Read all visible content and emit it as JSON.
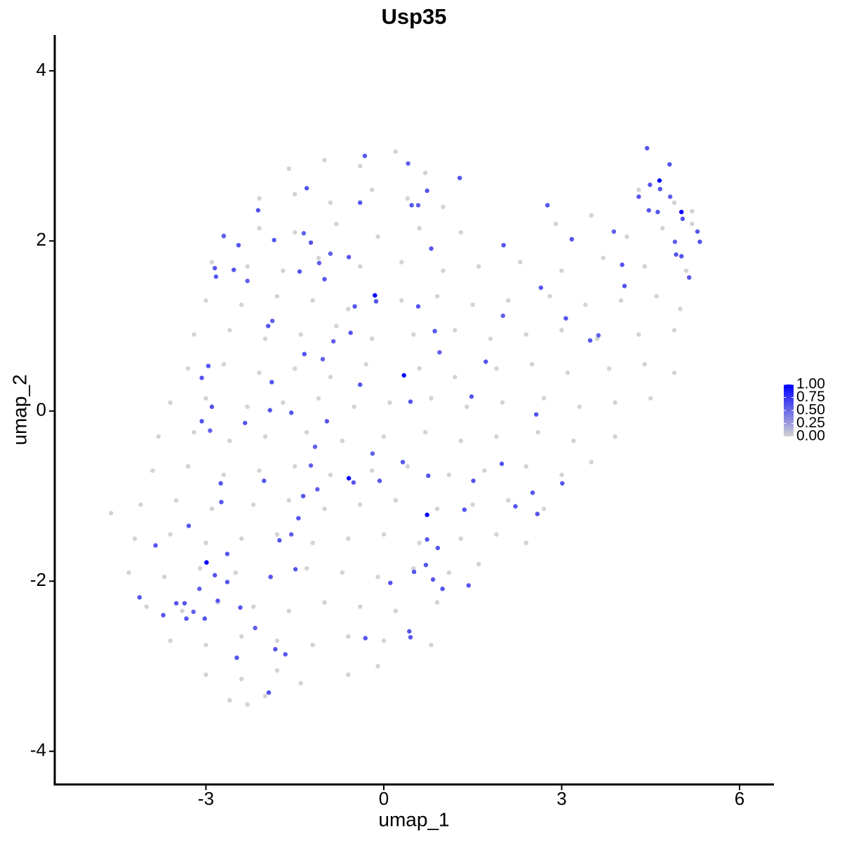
{
  "chart_data": {
    "type": "scatter",
    "title": "Usp35",
    "x_label": "umap_1",
    "y_label": "umap_2",
    "x": [
      -1.6,
      -1.0,
      -0.4,
      0.2,
      0.7,
      -2.1,
      -1.5,
      -0.9,
      -0.2,
      0.4,
      1.0,
      4.3,
      4.9,
      5.2,
      -2.7,
      -2.1,
      -1.5,
      -0.8,
      -0.1,
      0.6,
      1.3,
      2.9,
      3.5,
      4.1,
      4.7,
      5.2,
      -2.9,
      -2.3,
      -1.7,
      -1.1,
      -0.4,
      0.3,
      1.0,
      1.6,
      2.3,
      3.0,
      3.7,
      4.4,
      5.1,
      -3.0,
      -2.4,
      -1.8,
      -1.2,
      -0.6,
      0.3,
      0.9,
      1.5,
      2.1,
      2.8,
      3.4,
      4.0,
      4.6,
      5.0,
      -3.2,
      -2.6,
      -2.0,
      -1.4,
      -0.8,
      -0.2,
      0.5,
      1.2,
      1.8,
      2.4,
      3.0,
      3.6,
      4.3,
      4.9,
      -3.3,
      -2.7,
      -2.1,
      -1.5,
      -0.9,
      -0.3,
      0.6,
      1.2,
      1.9,
      2.5,
      3.1,
      3.8,
      4.4,
      4.9,
      -3.6,
      -3.0,
      -2.3,
      -1.7,
      -1.1,
      -0.5,
      0.1,
      0.8,
      1.4,
      2.0,
      2.7,
      3.3,
      3.9,
      4.5,
      -3.8,
      -3.2,
      -2.6,
      -2.0,
      -1.3,
      -0.7,
      0.0,
      0.7,
      1.3,
      1.9,
      2.6,
      3.2,
      3.9,
      -3.9,
      -3.3,
      -2.7,
      -2.1,
      -1.5,
      -0.9,
      -0.2,
      0.4,
      1.1,
      1.7,
      2.4,
      3.0,
      3.5,
      -4.6,
      -4.1,
      -3.5,
      -2.9,
      -2.2,
      -1.6,
      -1.0,
      -0.4,
      0.2,
      0.9,
      1.5,
      2.1,
      2.7,
      -4.2,
      -3.6,
      -3.0,
      -2.4,
      -1.8,
      -1.2,
      -0.6,
      0.0,
      0.6,
      1.3,
      1.9,
      2.4,
      -4.3,
      -3.7,
      -3.1,
      -2.5,
      -1.9,
      -1.3,
      -0.7,
      -0.1,
      0.5,
      1.1,
      1.6,
      -4.0,
      -3.4,
      -2.8,
      -2.2,
      -1.6,
      -1.0,
      -0.4,
      0.2,
      0.9,
      -3.6,
      -3.0,
      -2.4,
      -1.8,
      -1.2,
      -0.6,
      0.0,
      0.8,
      -3.0,
      -2.4,
      -1.8,
      -1.4,
      -0.6,
      -0.1,
      -2.6,
      -2.3,
      -2.0,
      -0.32,
      0.41,
      1.28,
      0.73,
      -1.3,
      -2.12,
      -0.4,
      0.47,
      0.58,
      -1.35,
      -1.85,
      -2.7,
      -2.45,
      -1.23,
      -0.9,
      -0.59,
      0.8,
      -2.85,
      -2.53,
      -1.42,
      -1.09,
      -1.0,
      -2.83,
      -2.3,
      -0.15,
      -0.13,
      -0.49,
      0.58,
      -1.95,
      -1.88,
      -0.56,
      -0.85,
      -1.34,
      -1.03,
      0.34,
      -2.96,
      -3.07,
      -1.89,
      -0.4,
      0.45,
      -2.9,
      -1.92,
      -1.56,
      -3.07,
      -2.93,
      -2.34,
      -0.96,
      -1.16,
      -0.19,
      0.32,
      -1.23,
      -0.59,
      -0.51,
      -0.07,
      -2.02,
      -2.75,
      -1.12,
      -1.36,
      -2.74,
      -1.44,
      0.73,
      -3.29,
      -1.76,
      -1.56,
      -3.85,
      -2.64,
      -2.99,
      -2.85,
      -2.64,
      -1.91,
      -1.49,
      0.11,
      0.71,
      -3.11,
      -4.12,
      -3.5,
      -3.36,
      -2.8,
      -2.42,
      -3.21,
      -3.72,
      -3.02,
      -3.33,
      -2.17,
      0.43,
      -0.31,
      0.45,
      -1.83,
      -1.66,
      -2.48,
      -1.94,
      4.44,
      4.82,
      4.65,
      4.49,
      4.66,
      4.3,
      4.83,
      2.76,
      4.47,
      4.62,
      5.02,
      5.04,
      5.29,
      3.88,
      3.17,
      2.02,
      4.91,
      5.33,
      4.02,
      4.93,
      5.02,
      5.15,
      4.06,
      2.65,
      2.01,
      3.07,
      3.62,
      3.48,
      0.86,
      0.94,
      1.72,
      1.48,
      2.57,
      1.99,
      1.51,
      3.01,
      0.75,
      2.51,
      2.22,
      1.36,
      2.59,
      0.73,
      0.91,
      0.51,
      0.83,
      0.99,
      1.43
    ],
    "y": [
      2.85,
      2.95,
      2.88,
      3.05,
      2.8,
      2.5,
      2.55,
      2.45,
      2.6,
      2.5,
      2.4,
      2.6,
      2.45,
      2.35,
      2.05,
      2.15,
      2.1,
      2.2,
      2.05,
      2.15,
      2.1,
      2.2,
      2.3,
      2.05,
      2.15,
      2.2,
      1.75,
      1.7,
      1.65,
      1.8,
      1.7,
      1.75,
      1.65,
      1.7,
      1.75,
      1.65,
      1.8,
      1.7,
      1.65,
      1.3,
      1.25,
      1.35,
      1.3,
      1.2,
      1.3,
      1.35,
      1.25,
      1.3,
      1.35,
      1.25,
      1.3,
      1.35,
      1.2,
      0.9,
      0.95,
      0.85,
      0.9,
      1.0,
      0.85,
      0.9,
      0.95,
      0.85,
      0.9,
      0.95,
      0.85,
      0.9,
      0.95,
      0.5,
      0.55,
      0.45,
      0.5,
      0.4,
      0.55,
      0.5,
      0.4,
      0.5,
      0.55,
      0.45,
      0.5,
      0.55,
      0.45,
      0.1,
      0.15,
      0.05,
      0.1,
      0.15,
      0.05,
      0.1,
      0.15,
      0.05,
      0.1,
      0.15,
      0.05,
      0.1,
      0.15,
      -0.3,
      -0.25,
      -0.35,
      -0.3,
      -0.25,
      -0.35,
      -0.3,
      -0.25,
      -0.35,
      -0.3,
      -0.25,
      -0.35,
      -0.3,
      -0.7,
      -0.65,
      -0.75,
      -0.7,
      -0.65,
      -0.75,
      -0.7,
      -0.65,
      -0.75,
      -0.7,
      -0.65,
      -0.75,
      -0.6,
      -1.2,
      -1.1,
      -1.05,
      -1.15,
      -1.1,
      -1.05,
      -1.15,
      -1.1,
      -1.05,
      -1.15,
      -1.1,
      -1.05,
      -1.15,
      -1.5,
      -1.45,
      -1.55,
      -1.5,
      -1.45,
      -1.55,
      -1.5,
      -1.45,
      -1.55,
      -1.5,
      -1.45,
      -1.55,
      -1.9,
      -1.95,
      -1.85,
      -1.9,
      -1.95,
      -1.85,
      -1.9,
      -1.95,
      -1.85,
      -1.9,
      -1.8,
      -2.3,
      -2.35,
      -2.25,
      -2.3,
      -2.35,
      -2.25,
      -2.3,
      -2.35,
      -2.25,
      -2.7,
      -2.75,
      -2.65,
      -2.7,
      -2.75,
      -2.65,
      -2.7,
      -2.75,
      -3.1,
      -3.15,
      -3.05,
      -3.2,
      -3.1,
      -3.0,
      -3.4,
      -3.45,
      -3.35,
      3.0,
      2.91,
      2.74,
      2.59,
      2.62,
      2.36,
      2.45,
      2.42,
      2.42,
      2.09,
      2.01,
      2.06,
      1.95,
      1.98,
      1.85,
      1.81,
      1.91,
      1.68,
      1.66,
      1.64,
      1.74,
      1.55,
      1.58,
      1.53,
      1.36,
      1.29,
      1.23,
      1.23,
      1.0,
      1.06,
      0.92,
      0.82,
      0.67,
      0.61,
      0.42,
      0.53,
      0.39,
      0.34,
      0.31,
      0.11,
      0.05,
      0.01,
      -0.02,
      -0.12,
      -0.23,
      -0.14,
      -0.12,
      -0.42,
      -0.5,
      -0.6,
      -0.64,
      -0.79,
      -0.84,
      -0.82,
      -0.82,
      -0.85,
      -0.92,
      -1.0,
      -1.07,
      -1.26,
      -1.22,
      -1.35,
      -1.52,
      -1.45,
      -1.58,
      -1.68,
      -1.78,
      -1.93,
      -2.01,
      -1.95,
      -1.86,
      -2.02,
      -1.81,
      -2.09,
      -2.19,
      -2.26,
      -2.26,
      -2.23,
      -2.31,
      -2.36,
      -2.4,
      -2.44,
      -2.44,
      -2.55,
      -2.59,
      -2.67,
      -2.66,
      -2.8,
      -2.86,
      -2.9,
      -3.31,
      3.09,
      2.9,
      2.71,
      2.66,
      2.61,
      2.52,
      2.52,
      2.42,
      2.36,
      2.34,
      2.34,
      2.26,
      2.11,
      2.11,
      2.02,
      1.95,
      1.99,
      1.99,
      1.72,
      1.84,
      1.82,
      1.57,
      1.47,
      1.45,
      1.12,
      1.09,
      0.89,
      0.83,
      0.94,
      0.69,
      0.58,
      0.17,
      -0.04,
      -0.62,
      -0.82,
      -0.85,
      -0.76,
      -0.96,
      -1.12,
      -1.16,
      -1.21,
      -1.51,
      -1.61,
      -1.89,
      -1.98,
      -2.09,
      -2.05
    ],
    "values": [
      0,
      0,
      0,
      0,
      0,
      0,
      0,
      0,
      0,
      0,
      0,
      0,
      0,
      0,
      0,
      0,
      0,
      0,
      0,
      0,
      0,
      0,
      0,
      0,
      0,
      0,
      0,
      0,
      0,
      0,
      0,
      0,
      0,
      0,
      0,
      0,
      0,
      0,
      0,
      0,
      0,
      0,
      0,
      0,
      0,
      0,
      0,
      0,
      0,
      0,
      0,
      0,
      0,
      0,
      0,
      0,
      0,
      0,
      0,
      0,
      0,
      0,
      0,
      0,
      0,
      0,
      0,
      0,
      0,
      0,
      0,
      0,
      0,
      0,
      0,
      0,
      0,
      0,
      0,
      0,
      0,
      0,
      0,
      0,
      0,
      0,
      0,
      0,
      0,
      0,
      0,
      0,
      0,
      0,
      0,
      0,
      0,
      0,
      0,
      0,
      0,
      0,
      0,
      0,
      0,
      0,
      0,
      0,
      0,
      0,
      0,
      0,
      0,
      0,
      0,
      0,
      0,
      0,
      0,
      0,
      0,
      0,
      0,
      0,
      0,
      0,
      0,
      0,
      0,
      0,
      0,
      0,
      0,
      0,
      0,
      0,
      0,
      0,
      0,
      0,
      0,
      0,
      0,
      0,
      0,
      0,
      0,
      0,
      0,
      0,
      0,
      0,
      0,
      0,
      0,
      0,
      0,
      0,
      0,
      0,
      0,
      0,
      0,
      0,
      0,
      0,
      0,
      0,
      0,
      0,
      0,
      0,
      0,
      0,
      0,
      0,
      0,
      0,
      0,
      0,
      0,
      0,
      0,
      0.6,
      0.55,
      0.6,
      0.6,
      0.6,
      0.6,
      0.6,
      0.6,
      0.55,
      0.55,
      0.6,
      0.55,
      0.6,
      0.6,
      0.55,
      0.6,
      0.6,
      0.6,
      0.6,
      0.6,
      0.55,
      0.6,
      0.6,
      0.55,
      1.0,
      0.6,
      0.6,
      0.6,
      0.6,
      0.55,
      0.6,
      0.55,
      0.6,
      0.55,
      1.0,
      0.6,
      0.6,
      0.6,
      0.6,
      0.6,
      0.6,
      0.6,
      0.6,
      0.6,
      0.55,
      0.6,
      0.6,
      0.55,
      0.55,
      0.6,
      0.55,
      1.0,
      0.6,
      0.6,
      0.6,
      0.6,
      0.55,
      0.6,
      0.6,
      0.6,
      1.0,
      0.6,
      0.6,
      0.55,
      0.6,
      0.6,
      1.0,
      0.6,
      0.6,
      0.6,
      0.6,
      0.6,
      0.6,
      0.55,
      0.6,
      0.6,
      0.6,
      0.6,
      0.6,
      0.55,
      0.6,
      0.6,
      0.6,
      0.55,
      0.6,
      0.6,
      0.6,
      0.6,
      0.6,
      0.6,
      0.6,
      0.6,
      0.6,
      1.0,
      0.6,
      0.6,
      0.6,
      0.55,
      0.6,
      0.6,
      0.6,
      1.0,
      0.6,
      0.6,
      0.55,
      0.6,
      0.6,
      0.55,
      0.6,
      0.6,
      0.6,
      0.6,
      0.6,
      0.6,
      0.6,
      0.55,
      0.6,
      0.55,
      0.6,
      0.6,
      0.55,
      0.6,
      0.6,
      0.6,
      0.6,
      0.6,
      0.6,
      0.6,
      0.6,
      0.6,
      0.6,
      0.6,
      0.6,
      0.6,
      0.6,
      0.6,
      0.6,
      0.6
    ],
    "xlim": [
      -5.55,
      6.58
    ],
    "ylim": [
      -4.39,
      4.42
    ],
    "xticks": [
      -3,
      0,
      3,
      6
    ],
    "yticks": [
      -4,
      -2,
      0,
      2,
      4
    ],
    "color_scale": {
      "low": "#d3d3d3",
      "high": "#0000ff",
      "lim": [
        0,
        1
      ],
      "ticks": [
        {
          "value": 0,
          "label": "0.00"
        },
        {
          "value": 0.25,
          "label": "0.25"
        },
        {
          "value": 0.5,
          "label": "0.50"
        },
        {
          "value": 0.75,
          "label": "0.75"
        },
        {
          "value": 1,
          "label": "1.00"
        }
      ]
    }
  }
}
